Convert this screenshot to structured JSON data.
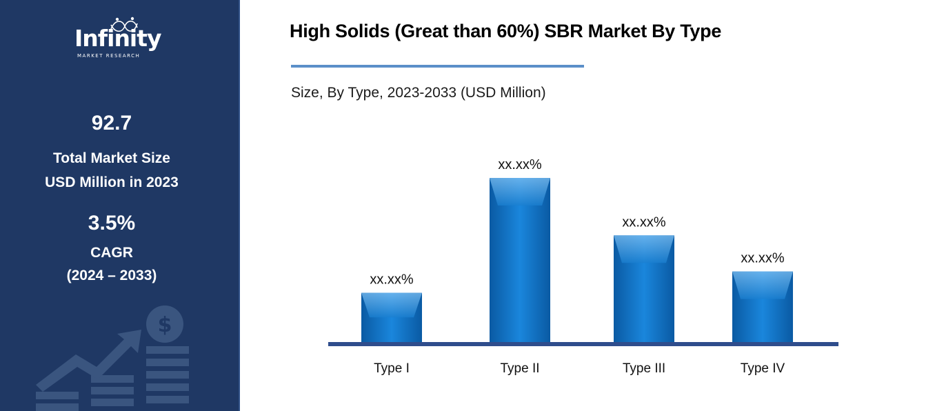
{
  "brand": {
    "name": "Infinity",
    "tagline": "MARKET RESEARCH"
  },
  "sidebar": {
    "market_size_value": "92.7",
    "market_size_label_1": "Total Market Size",
    "market_size_label_2": "USD Million in 2023",
    "cagr_value": "3.5%",
    "cagr_label": "CAGR",
    "cagr_period": "(2024 – 2033)",
    "icons": [
      "growth-arrow-icon",
      "dollar-coin-icon",
      "bar-stack-icon"
    ]
  },
  "colors": {
    "sidebar_bg": "#1f3864",
    "bar": "#0b6fc2",
    "baseline": "#2f4d8c",
    "title_rule": "#5b8fc9"
  },
  "chart_data": {
    "type": "bar",
    "title": "High Solids (Great than 60%) SBR Market By Type",
    "subtitle": "Size, By Type, 2023-2033 (USD Million)",
    "categories": [
      "Type I",
      "Type II",
      "Type III",
      "Type IV"
    ],
    "values": [
      30,
      100,
      65,
      43
    ],
    "data_labels": [
      "xx.xx%",
      "xx.xx%",
      "xx.xx%",
      "xx.xx%"
    ],
    "ylim": [
      0,
      100
    ],
    "grid": false,
    "legend": "none"
  }
}
